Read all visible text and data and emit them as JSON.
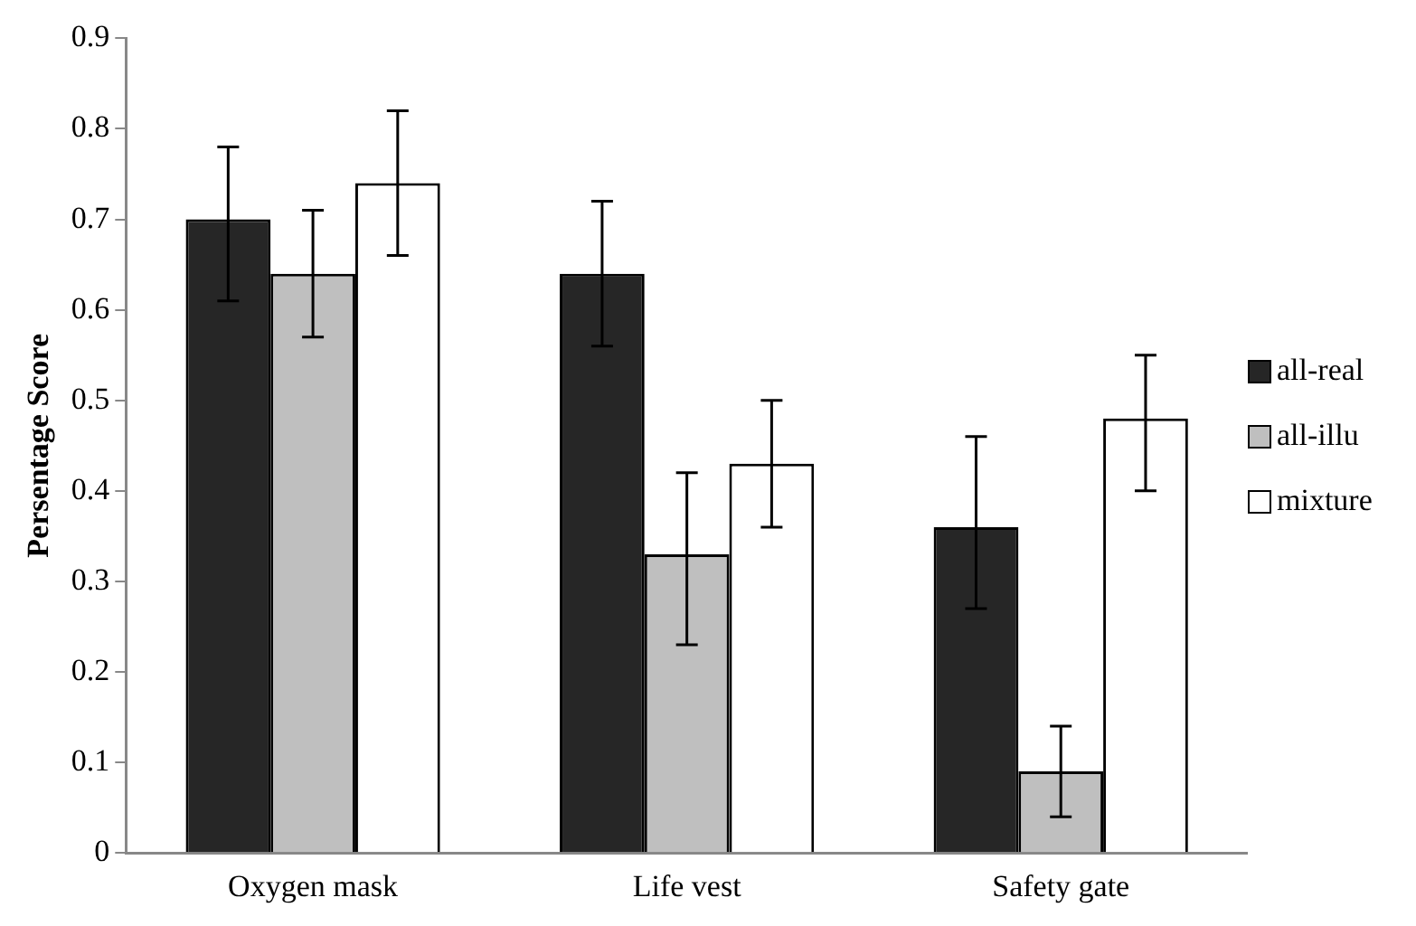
{
  "chart_data": {
    "type": "bar",
    "ylabel": "Persentage Score",
    "categories": [
      "Oxygen mask",
      "Life vest",
      "Safety gate"
    ],
    "series": [
      {
        "name": "all-real",
        "color": "#262626",
        "values": [
          0.7,
          0.64,
          0.36
        ],
        "errors": [
          [
            0.61,
            0.78
          ],
          [
            0.56,
            0.72
          ],
          [
            0.27,
            0.46
          ]
        ]
      },
      {
        "name": "all-illu",
        "color": "#bfbfbf",
        "values": [
          0.64,
          0.33,
          0.09
        ],
        "errors": [
          [
            0.57,
            0.71
          ],
          [
            0.23,
            0.42
          ],
          [
            0.04,
            0.14
          ]
        ]
      },
      {
        "name": "mixture",
        "color": "#ffffff",
        "values": [
          0.74,
          0.43,
          0.48
        ],
        "errors": [
          [
            0.66,
            0.82
          ],
          [
            0.36,
            0.5
          ],
          [
            0.4,
            0.55
          ]
        ]
      }
    ],
    "ylim": [
      0,
      0.9
    ],
    "yticks": [
      0,
      0.1,
      0.2,
      0.3,
      0.4,
      0.5,
      0.6,
      0.7,
      0.8,
      0.9
    ],
    "grid": false,
    "legend": "right"
  }
}
